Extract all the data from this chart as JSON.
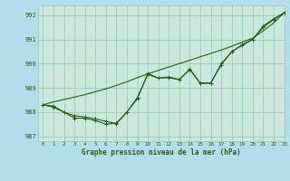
{
  "title": "Graphe pression niveau de la mer (hPa)",
  "bg_color": "#b3dde8",
  "plot_bg_color": "#cce8dd",
  "grid_color": "#99ccbb",
  "line_color": "#2d5a1b",
  "xlim": [
    -0.5,
    23
  ],
  "ylim": [
    986.8,
    992.4
  ],
  "yticks": [
    987,
    988,
    989,
    990,
    991,
    992
  ],
  "xticks": [
    0,
    1,
    2,
    3,
    4,
    5,
    6,
    7,
    8,
    9,
    10,
    11,
    12,
    13,
    14,
    15,
    16,
    17,
    18,
    19,
    20,
    21,
    22,
    23
  ],
  "line1": [
    988.3,
    988.25,
    988.0,
    987.75,
    987.75,
    987.65,
    987.5,
    987.55,
    988.0,
    988.55,
    989.6,
    989.4,
    989.45,
    989.35,
    989.75,
    989.2,
    989.2,
    989.95,
    990.5,
    990.75,
    991.0,
    991.55,
    991.85,
    992.1
  ],
  "line2": [
    988.3,
    988.2,
    988.0,
    987.85,
    987.8,
    987.72,
    987.62,
    987.52,
    988.0,
    988.6,
    989.55,
    989.4,
    989.42,
    989.33,
    989.78,
    989.18,
    989.2,
    990.0,
    990.48,
    990.78,
    991.0,
    991.5,
    991.82,
    992.1
  ],
  "line3_smooth": [
    988.3,
    988.42,
    988.52,
    988.62,
    988.72,
    988.84,
    988.96,
    989.1,
    989.25,
    989.42,
    989.58,
    989.72,
    989.86,
    990.0,
    990.14,
    990.28,
    990.42,
    990.56,
    990.72,
    990.88,
    991.05,
    991.35,
    991.68,
    992.1
  ]
}
